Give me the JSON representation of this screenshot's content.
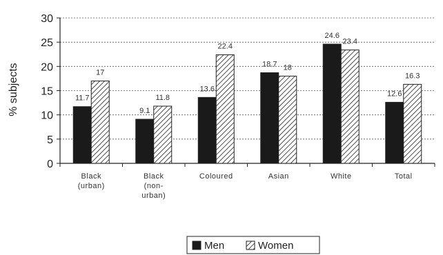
{
  "chart_data": {
    "type": "bar",
    "ylabel": "% subjects",
    "ylim": [
      0,
      30
    ],
    "yticks": [
      "0",
      "5",
      "10",
      "15",
      "20",
      "25",
      "30"
    ],
    "ytick_values": [
      0,
      5,
      10,
      15,
      20,
      25,
      30
    ],
    "grid": true,
    "legend_position": "bottom",
    "categories": [
      {
        "lines": [
          "Black",
          "(urban)"
        ]
      },
      {
        "lines": [
          "Black",
          "(non-",
          "urban)"
        ]
      },
      {
        "lines": [
          "Coloured"
        ]
      },
      {
        "lines": [
          "Asian"
        ]
      },
      {
        "lines": [
          "White"
        ]
      },
      {
        "lines": [
          "Total"
        ]
      }
    ],
    "series": [
      {
        "name": "Men",
        "fill": "solid",
        "color": "#1a1a1a",
        "values": [
          11.7,
          9.1,
          13.6,
          18.7,
          24.6,
          12.6
        ],
        "labels": [
          "11.7",
          "9.1",
          "13.6",
          "18.7",
          "24.6",
          "12.6"
        ]
      },
      {
        "name": "Women",
        "fill": "hatched",
        "color": "#ffffff",
        "values": [
          17,
          11.8,
          22.4,
          18,
          23.4,
          16.3
        ],
        "labels": [
          "17",
          "11.8",
          "22.4",
          "18",
          "23.4",
          "16.3"
        ]
      }
    ]
  }
}
